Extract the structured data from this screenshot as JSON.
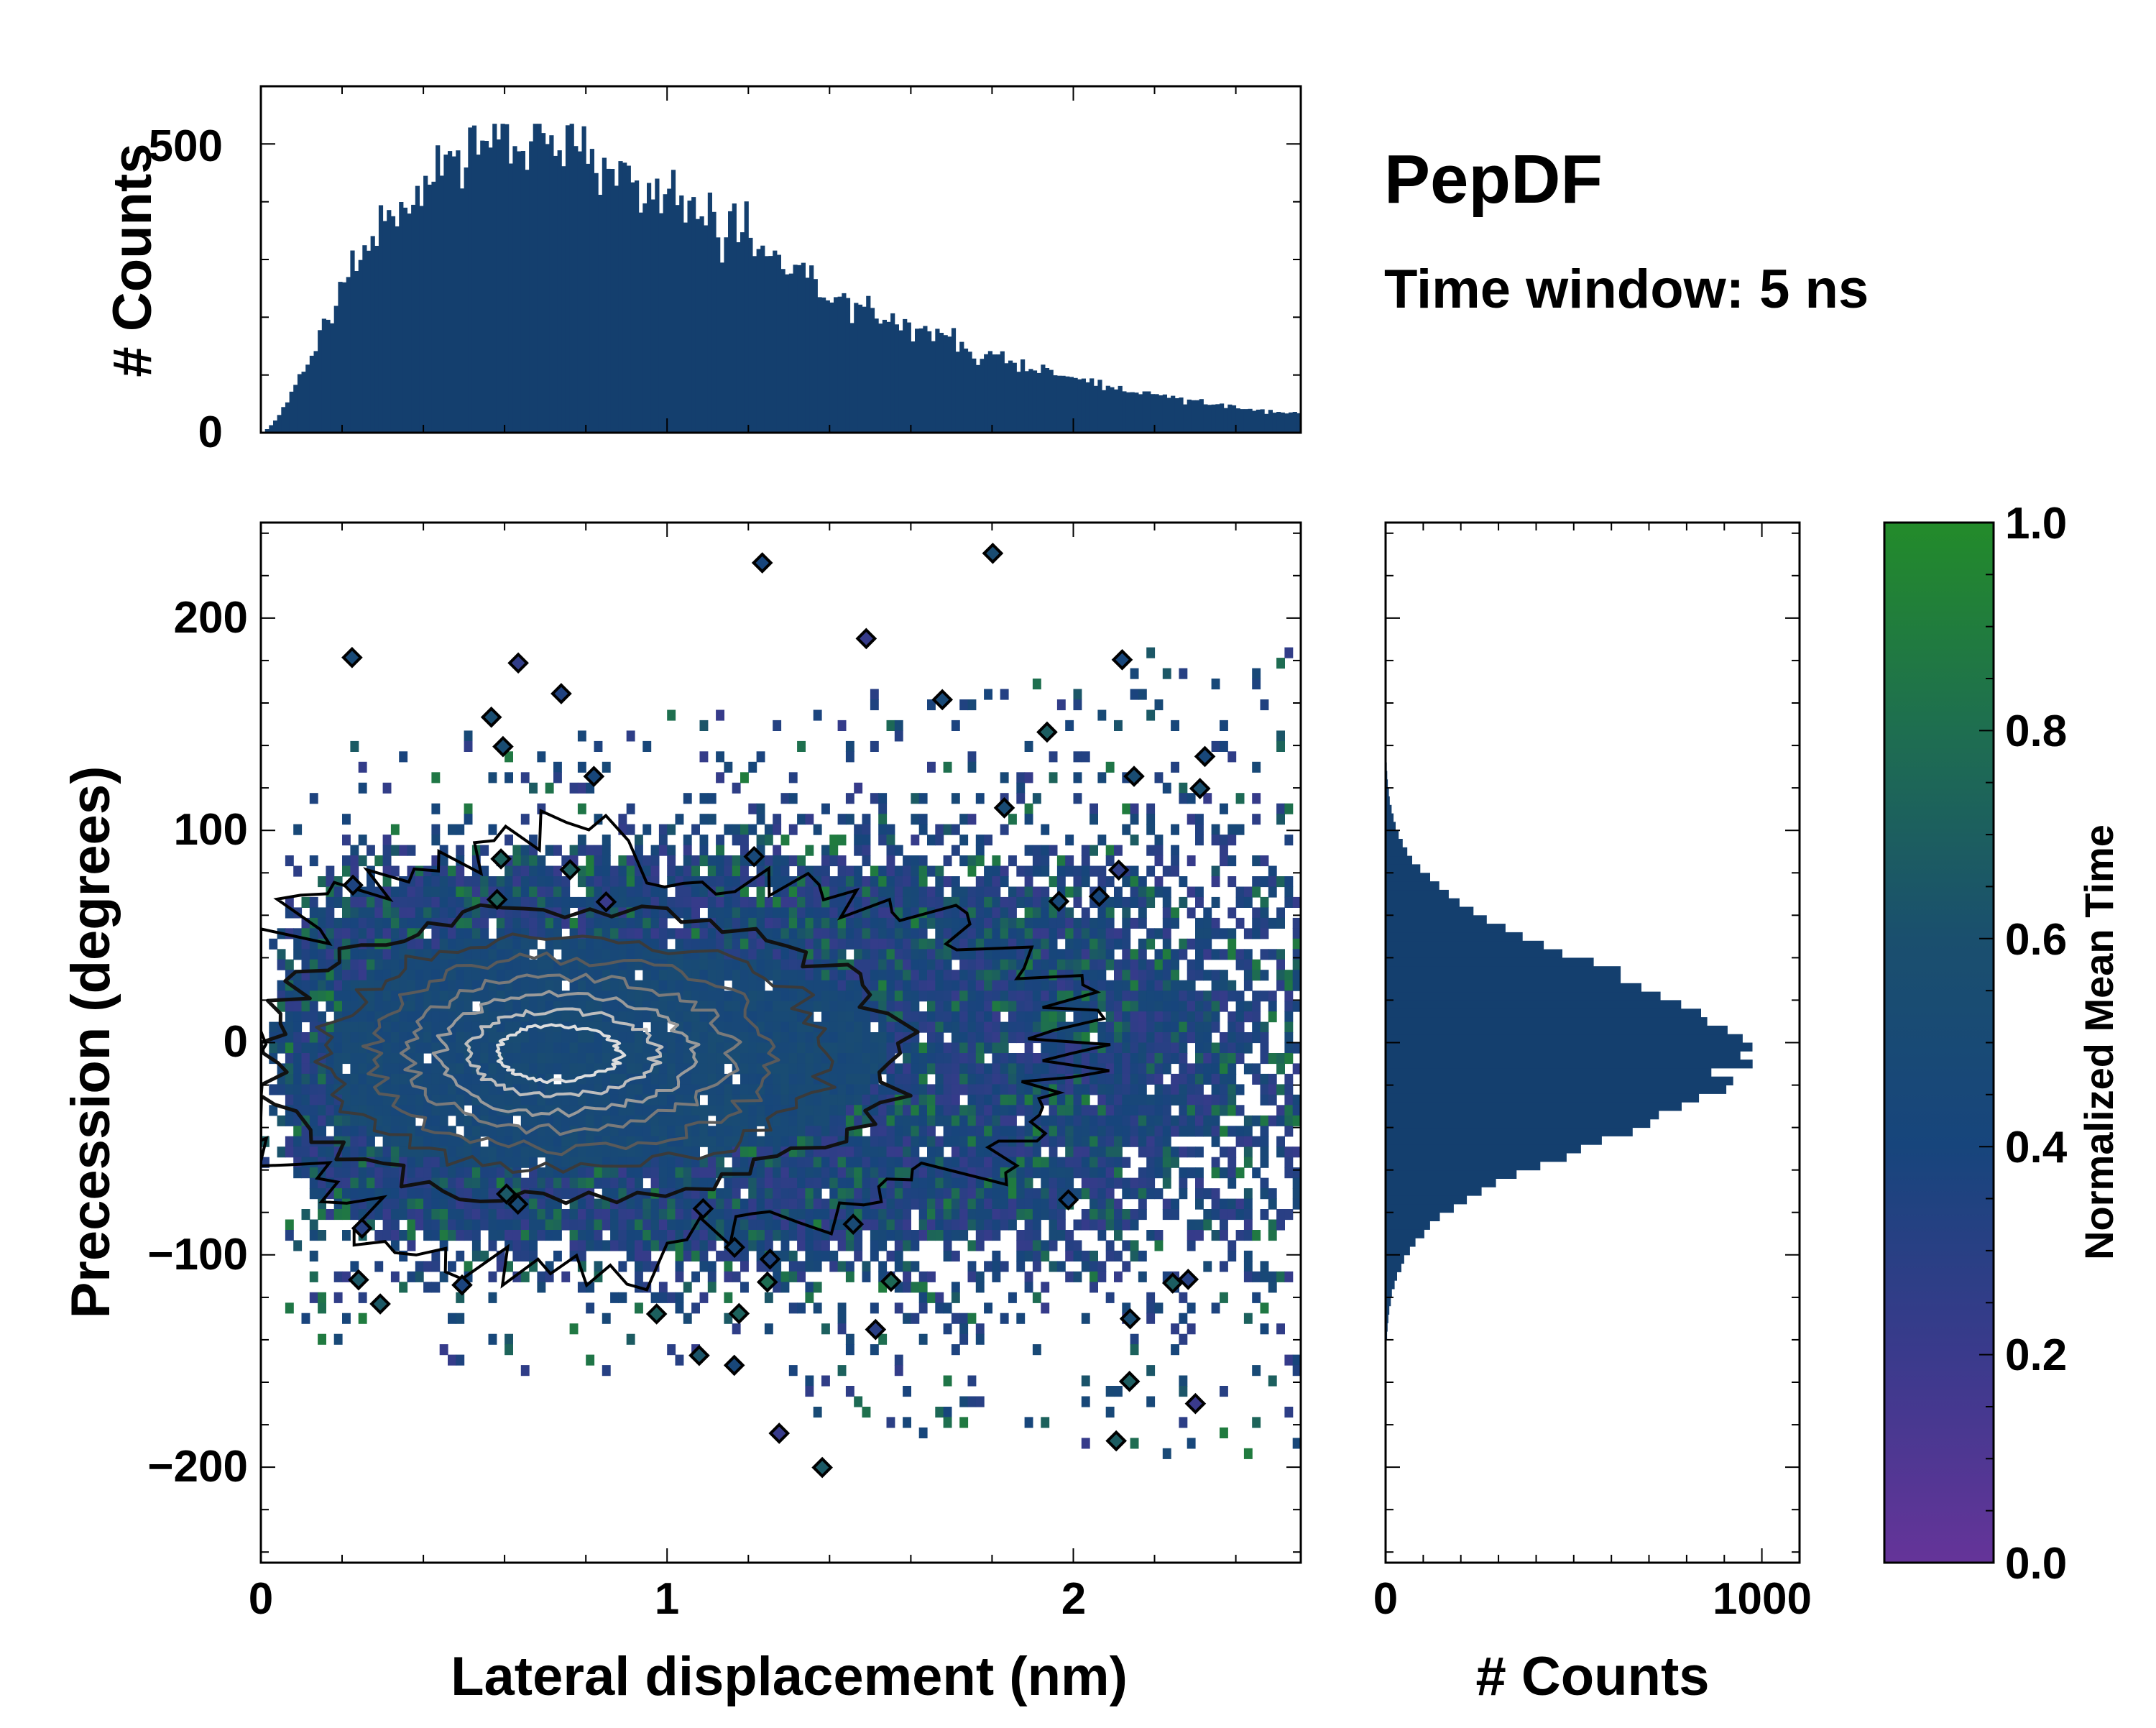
{
  "figure": {
    "title": "PepDF",
    "subtitle": "Time window: 5 ns"
  },
  "chart_data": [
    {
      "type": "heatmap",
      "name": "main-2d-histogram",
      "xlabel": "Lateral displacement (nm)",
      "ylabel": "Precession (degrees)",
      "xlim": [
        0,
        2.56
      ],
      "ylim": [
        -245,
        245
      ],
      "xticks": [
        0,
        1,
        2
      ],
      "xtick_labels": [
        "0",
        "1",
        "2"
      ],
      "yticks": [
        -200,
        -100,
        0,
        100,
        200
      ],
      "ytick_labels": [
        "−200",
        "−100",
        "0",
        "100",
        "200"
      ],
      "distribution": {
        "x_mode": 0.62,
        "y_center": -5,
        "y_sd": 40
      },
      "contours": "black-to-white density contours over a cell grid coloured by normalized mean time"
    },
    {
      "type": "bar",
      "name": "top-marginal-histogram",
      "ylabel": "# Counts",
      "xlim": [
        0,
        2.56
      ],
      "ylim": [
        0,
        600
      ],
      "yticks": [
        0,
        500
      ],
      "ytick_labels": [
        "0",
        "500"
      ],
      "peak_x": 0.62,
      "peak_count": 535,
      "bin_width": 0.01
    },
    {
      "type": "bar",
      "orientation": "horizontal",
      "name": "right-marginal-histogram",
      "xlabel": "# Counts",
      "xlim": [
        0,
        1100
      ],
      "ylim": [
        -245,
        245
      ],
      "xticks": [
        0,
        1000
      ],
      "xtick_labels": [
        "0",
        "1000"
      ],
      "peak_y": -5,
      "peak_count": 970,
      "sd": 40,
      "bin_width": 4
    },
    {
      "type": "colorbar",
      "name": "time-colorbar",
      "label": "Normalized Mean Time",
      "range": [
        0.0,
        1.0
      ],
      "ticks": [
        0.0,
        0.2,
        0.4,
        0.6,
        0.8,
        1.0
      ],
      "tick_labels": [
        "0.0",
        "0.2",
        "0.4",
        "0.6",
        "0.8",
        "1.0"
      ],
      "colors": [
        "#653499",
        "#3a3a8c",
        "#17457c",
        "#1a4f6e",
        "#1e6e50",
        "#238b2a"
      ]
    }
  ],
  "colors": {
    "bar_fill": "#143f6e",
    "background": "#ffffff",
    "axes": "#000000"
  }
}
